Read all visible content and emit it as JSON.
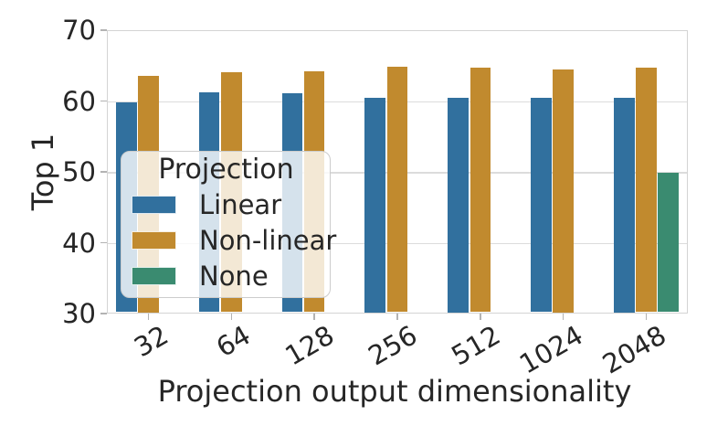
{
  "chart_data": {
    "type": "bar",
    "title": "",
    "xlabel": "Projection output dimensionality",
    "ylabel": "Top 1",
    "categories": [
      "32",
      "64",
      "128",
      "256",
      "512",
      "1024",
      "2048"
    ],
    "series": [
      {
        "name": "Linear",
        "color": "#31709E",
        "values": [
          59.8,
          61.2,
          61.1,
          60.5,
          60.5,
          60.4,
          60.5
        ]
      },
      {
        "name": "Non-linear",
        "color": "#C18A2E",
        "values": [
          63.5,
          64.1,
          64.2,
          64.8,
          64.7,
          64.5,
          64.7
        ]
      },
      {
        "name": "None",
        "color": "#3A8B70",
        "values": [
          null,
          null,
          null,
          null,
          null,
          null,
          49.9
        ]
      }
    ],
    "ylim": [
      30,
      70
    ],
    "yticks": [
      30,
      40,
      50,
      60,
      70
    ],
    "legend": {
      "title": "Projection",
      "position": "lower-left"
    },
    "grid": true
  },
  "colors": {
    "text": "#262626",
    "grid": "#dcdcdc",
    "spine": "#d4d4d4",
    "tick_mark": "#b3b3b3",
    "legend_border": "#cccccc",
    "background": "#ffffff"
  }
}
